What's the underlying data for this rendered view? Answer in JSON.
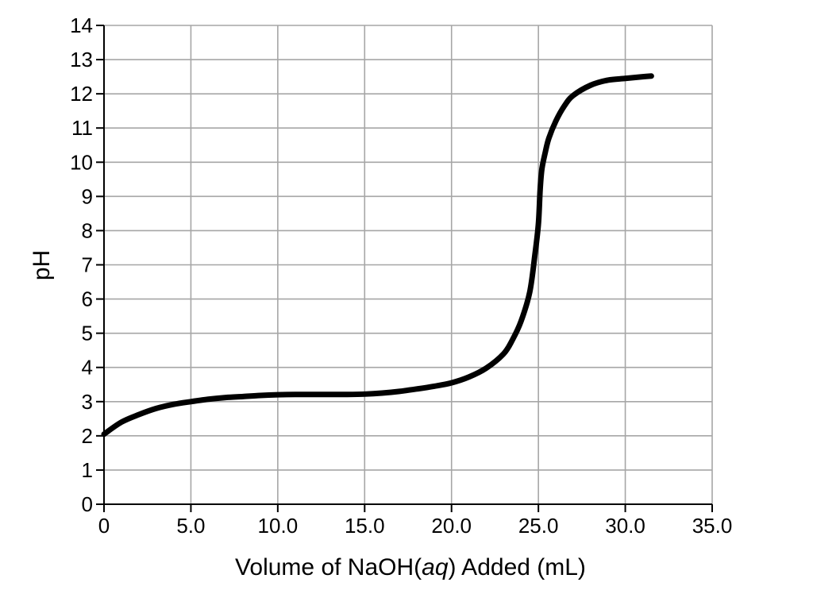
{
  "chart_data": {
    "type": "line",
    "title": "",
    "xlabel_parts": [
      "Volume of NaOH(",
      "aq",
      ") Added (mL)"
    ],
    "ylabel": "pH",
    "xlim": [
      0,
      35
    ],
    "ylim": [
      0,
      14
    ],
    "grid": true,
    "legend": "none",
    "x_ticks": [
      "0",
      "5.0",
      "10.0",
      "15.0",
      "20.0",
      "25.0",
      "30.0",
      "35.0"
    ],
    "y_ticks": [
      "0",
      "1",
      "2",
      "3",
      "4",
      "5",
      "6",
      "7",
      "8",
      "9",
      "10",
      "11",
      "12",
      "13",
      "14"
    ],
    "line_color": "#000000",
    "grid_color": "#a6a6a6",
    "series": [
      {
        "x": [
          0,
          1,
          2,
          3,
          4,
          5,
          6,
          7,
          8,
          9,
          10,
          11,
          12,
          13,
          14,
          15,
          16,
          17,
          18,
          19,
          20,
          21,
          22,
          23,
          23.5,
          24,
          24.5,
          24.8,
          25,
          25.1,
          25.2,
          25.4,
          25.6,
          26,
          26.5,
          27,
          28,
          29,
          30,
          31,
          31.5
        ],
        "y": [
          2.05,
          2.4,
          2.62,
          2.8,
          2.92,
          3.0,
          3.07,
          3.12,
          3.15,
          3.18,
          3.2,
          3.21,
          3.21,
          3.21,
          3.21,
          3.22,
          3.25,
          3.3,
          3.37,
          3.45,
          3.55,
          3.72,
          3.98,
          4.4,
          4.8,
          5.35,
          6.2,
          7.3,
          8.2,
          9.2,
          9.8,
          10.3,
          10.7,
          11.2,
          11.65,
          11.95,
          12.25,
          12.4,
          12.45,
          12.5,
          12.52
        ]
      }
    ]
  }
}
